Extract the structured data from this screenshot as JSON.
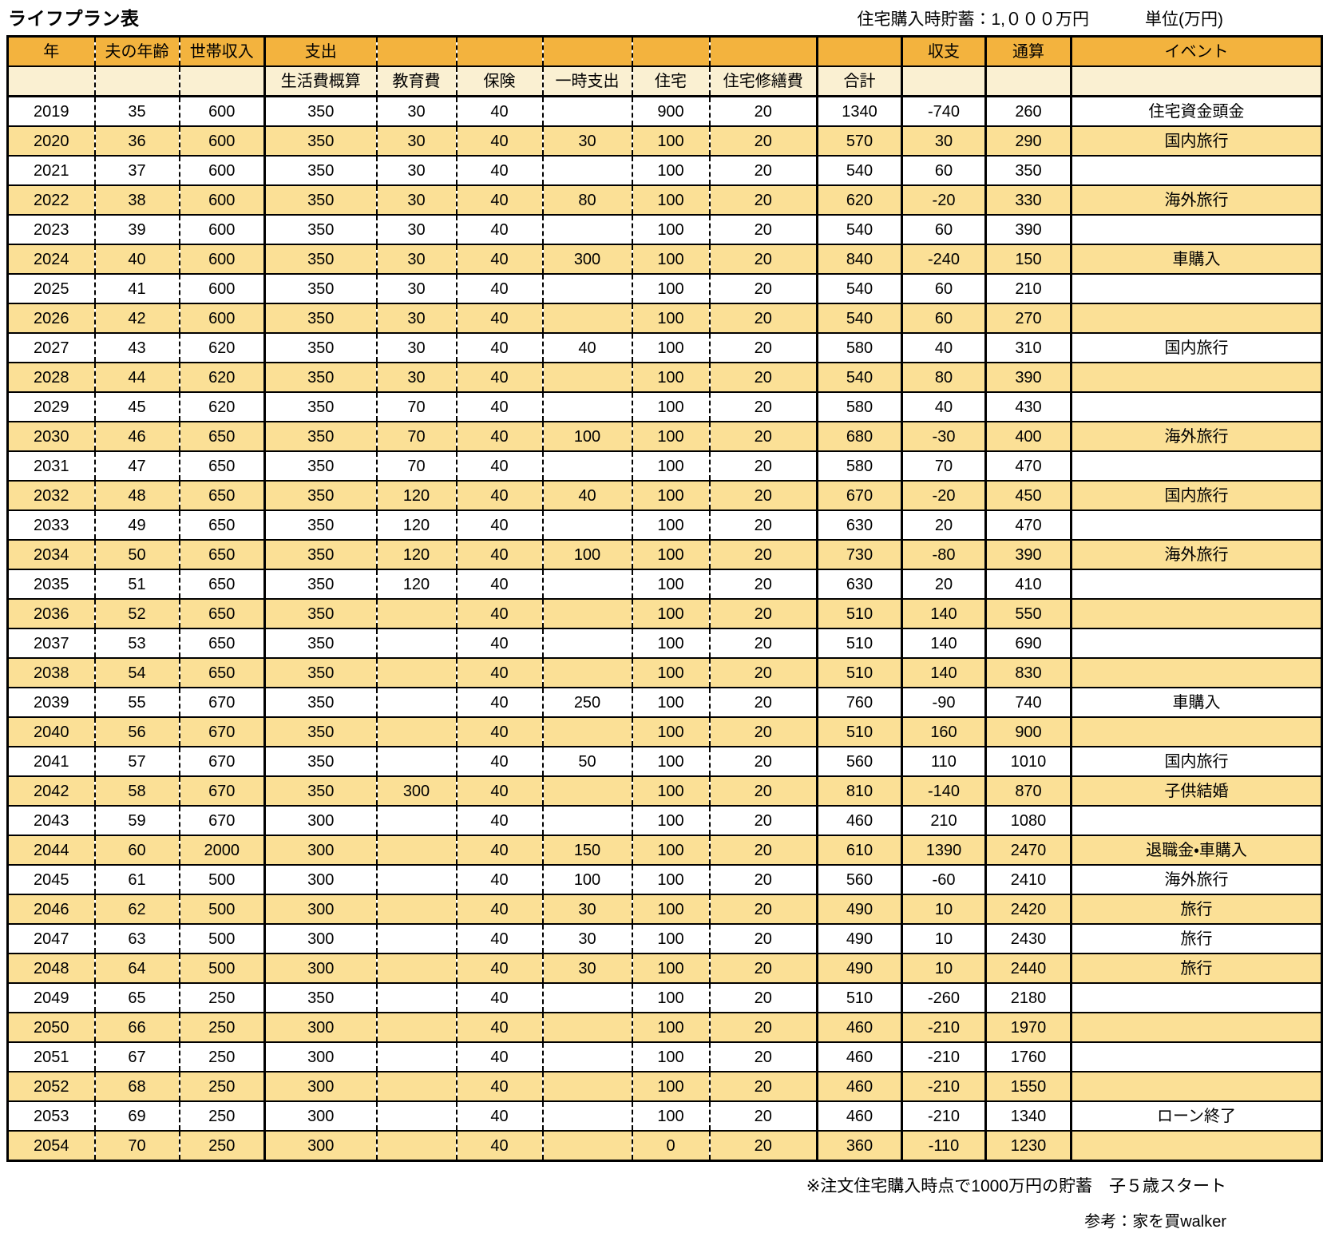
{
  "page": {
    "title": "ライフプラン表",
    "top_note_savings": "住宅購入時貯蓄：1,０００万円",
    "top_note_unit": "単位(万円)",
    "footnote": "※注文住宅購入時点で1000万円の貯蓄　子５歳スタート",
    "reference": "参考：家を買walker"
  },
  "colors": {
    "header_bg": "#F3B33E",
    "subheader_bg": "#FAF0D2",
    "stripe_bg": "#FBE096",
    "row_bg": "#FFFFFF",
    "border": "#000000"
  },
  "table": {
    "header_row1": [
      "年",
      "夫の年齢",
      "世帯収入",
      "支出",
      "",
      "",
      "",
      "",
      "",
      "",
      "収支",
      "通算",
      "イベント"
    ],
    "header_row2": [
      "",
      "",
      "",
      "生活費概算",
      "教育費",
      "保険",
      "一時支出",
      "住宅",
      "住宅修繕費",
      "合計",
      "",
      "",
      ""
    ],
    "column_semantics": [
      "year",
      "husband_age",
      "household_income",
      "living_cost",
      "education_cost",
      "insurance",
      "one_time_expense",
      "housing",
      "housing_repair_cost",
      "expense_total",
      "balance",
      "cumulative",
      "event"
    ],
    "rows": [
      [
        2019,
        35,
        600,
        350,
        30,
        40,
        "",
        900,
        20,
        1340,
        -740,
        260,
        "住宅資金頭金"
      ],
      [
        2020,
        36,
        600,
        350,
        30,
        40,
        30,
        100,
        20,
        570,
        30,
        290,
        "国内旅行"
      ],
      [
        2021,
        37,
        600,
        350,
        30,
        40,
        "",
        100,
        20,
        540,
        60,
        350,
        ""
      ],
      [
        2022,
        38,
        600,
        350,
        30,
        40,
        80,
        100,
        20,
        620,
        -20,
        330,
        "海外旅行"
      ],
      [
        2023,
        39,
        600,
        350,
        30,
        40,
        "",
        100,
        20,
        540,
        60,
        390,
        ""
      ],
      [
        2024,
        40,
        600,
        350,
        30,
        40,
        300,
        100,
        20,
        840,
        -240,
        150,
        "車購入"
      ],
      [
        2025,
        41,
        600,
        350,
        30,
        40,
        "",
        100,
        20,
        540,
        60,
        210,
        ""
      ],
      [
        2026,
        42,
        600,
        350,
        30,
        40,
        "",
        100,
        20,
        540,
        60,
        270,
        ""
      ],
      [
        2027,
        43,
        620,
        350,
        30,
        40,
        40,
        100,
        20,
        580,
        40,
        310,
        "国内旅行"
      ],
      [
        2028,
        44,
        620,
        350,
        30,
        40,
        "",
        100,
        20,
        540,
        80,
        390,
        ""
      ],
      [
        2029,
        45,
        620,
        350,
        70,
        40,
        "",
        100,
        20,
        580,
        40,
        430,
        ""
      ],
      [
        2030,
        46,
        650,
        350,
        70,
        40,
        100,
        100,
        20,
        680,
        -30,
        400,
        "海外旅行"
      ],
      [
        2031,
        47,
        650,
        350,
        70,
        40,
        "",
        100,
        20,
        580,
        70,
        470,
        ""
      ],
      [
        2032,
        48,
        650,
        350,
        120,
        40,
        40,
        100,
        20,
        670,
        -20,
        450,
        "国内旅行"
      ],
      [
        2033,
        49,
        650,
        350,
        120,
        40,
        "",
        100,
        20,
        630,
        20,
        470,
        ""
      ],
      [
        2034,
        50,
        650,
        350,
        120,
        40,
        100,
        100,
        20,
        730,
        -80,
        390,
        "海外旅行"
      ],
      [
        2035,
        51,
        650,
        350,
        120,
        40,
        "",
        100,
        20,
        630,
        20,
        410,
        ""
      ],
      [
        2036,
        52,
        650,
        350,
        "",
        40,
        "",
        100,
        20,
        510,
        140,
        550,
        ""
      ],
      [
        2037,
        53,
        650,
        350,
        "",
        40,
        "",
        100,
        20,
        510,
        140,
        690,
        ""
      ],
      [
        2038,
        54,
        650,
        350,
        "",
        40,
        "",
        100,
        20,
        510,
        140,
        830,
        ""
      ],
      [
        2039,
        55,
        670,
        350,
        "",
        40,
        250,
        100,
        20,
        760,
        -90,
        740,
        "車購入"
      ],
      [
        2040,
        56,
        670,
        350,
        "",
        40,
        "",
        100,
        20,
        510,
        160,
        900,
        ""
      ],
      [
        2041,
        57,
        670,
        350,
        "",
        40,
        50,
        100,
        20,
        560,
        110,
        1010,
        "国内旅行"
      ],
      [
        2042,
        58,
        670,
        350,
        300,
        40,
        "",
        100,
        20,
        810,
        -140,
        870,
        "子供結婚"
      ],
      [
        2043,
        59,
        670,
        300,
        "",
        40,
        "",
        100,
        20,
        460,
        210,
        1080,
        ""
      ],
      [
        2044,
        60,
        2000,
        300,
        "",
        40,
        150,
        100,
        20,
        610,
        1390,
        2470,
        "退職金・車購入"
      ],
      [
        2045,
        61,
        500,
        300,
        "",
        40,
        100,
        100,
        20,
        560,
        -60,
        2410,
        "海外旅行"
      ],
      [
        2046,
        62,
        500,
        300,
        "",
        40,
        30,
        100,
        20,
        490,
        10,
        2420,
        "旅行"
      ],
      [
        2047,
        63,
        500,
        300,
        "",
        40,
        30,
        100,
        20,
        490,
        10,
        2430,
        "旅行"
      ],
      [
        2048,
        64,
        500,
        300,
        "",
        40,
        30,
        100,
        20,
        490,
        10,
        2440,
        "旅行"
      ],
      [
        2049,
        65,
        250,
        350,
        "",
        40,
        "",
        100,
        20,
        510,
        -260,
        2180,
        ""
      ],
      [
        2050,
        66,
        250,
        300,
        "",
        40,
        "",
        100,
        20,
        460,
        -210,
        1970,
        ""
      ],
      [
        2051,
        67,
        250,
        300,
        "",
        40,
        "",
        100,
        20,
        460,
        -210,
        1760,
        ""
      ],
      [
        2052,
        68,
        250,
        300,
        "",
        40,
        "",
        100,
        20,
        460,
        -210,
        1550,
        ""
      ],
      [
        2053,
        69,
        250,
        300,
        "",
        40,
        "",
        100,
        20,
        460,
        -210,
        1340,
        "ローン終了"
      ],
      [
        2054,
        70,
        250,
        300,
        "",
        40,
        "",
        0,
        20,
        360,
        -110,
        1230,
        ""
      ]
    ]
  }
}
